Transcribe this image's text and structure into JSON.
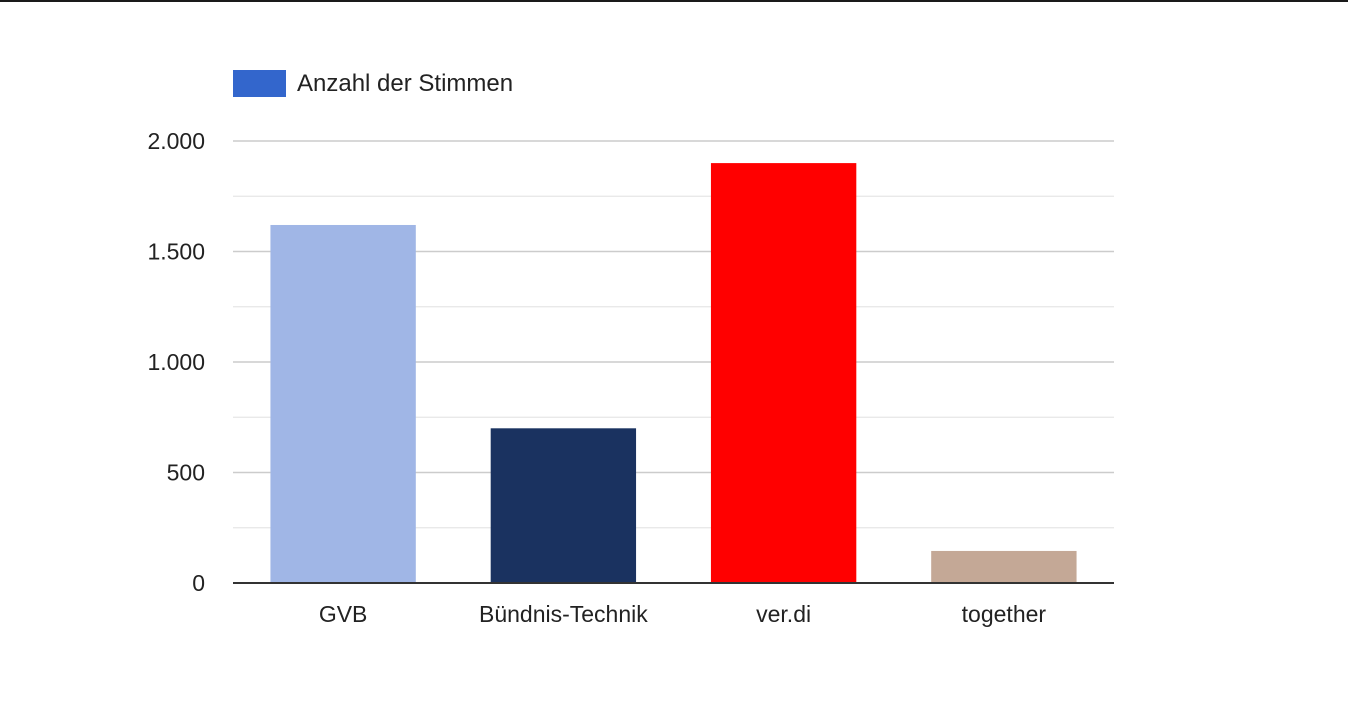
{
  "chart_data": {
    "type": "bar",
    "categories": [
      "GVB",
      "Bündnis-Technik",
      "ver.di",
      "together"
    ],
    "values": [
      1620,
      700,
      1900,
      145
    ],
    "bar_colors": [
      "#a0b6e6",
      "#1a3260",
      "#ff0000",
      "#c4a896"
    ],
    "series": [
      {
        "name": "Anzahl der Stimmen",
        "values": [
          1620,
          700,
          1900,
          145
        ],
        "legend_color": "#3366cc"
      }
    ],
    "ylim": [
      0,
      2000
    ],
    "yticks": [
      0,
      500,
      1000,
      1500,
      2000
    ],
    "ytick_labels": [
      "0",
      "500",
      "1.000",
      "1.500",
      "2.000"
    ],
    "minor_gridlines": true,
    "grid": true,
    "legend_position": "top-left",
    "title": "",
    "xlabel": "",
    "ylabel": ""
  }
}
